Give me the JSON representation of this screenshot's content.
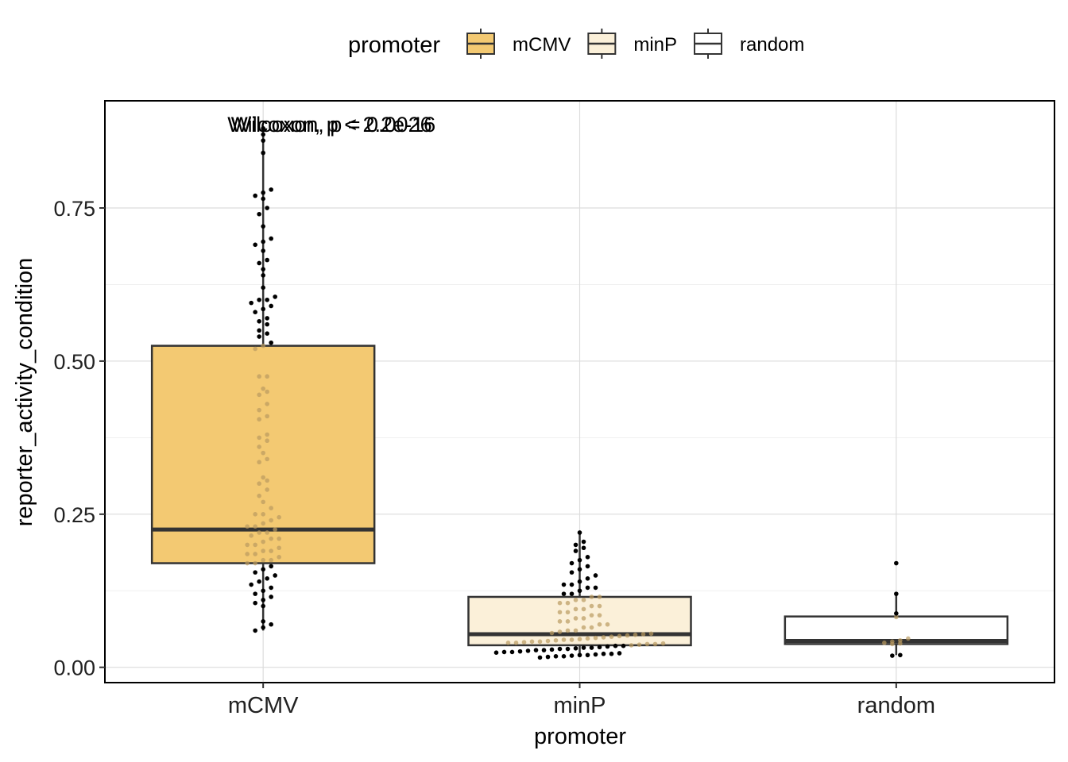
{
  "chart_data": {
    "type": "box",
    "xlabel": "promoter",
    "ylabel": "reporter_activity_condition",
    "ylim": [
      -0.025,
      0.925
    ],
    "yticks": [
      0.0,
      0.25,
      0.5,
      0.75
    ],
    "ytick_labels": [
      "0.00",
      "0.25",
      "0.50",
      "0.75"
    ],
    "categories": [
      "mCMV",
      "minP",
      "random"
    ],
    "grid": true,
    "legend": {
      "title": "promoter",
      "position": "top",
      "entries": [
        {
          "label": "mCMV",
          "color": "#f3c972"
        },
        {
          "label": "minP",
          "color": "#fbf0d9"
        },
        {
          "label": "random",
          "color": "#ffffff"
        }
      ]
    },
    "annotations": [
      {
        "text": "Wilcoxon, p < 2.2e-16",
        "x": "mCMV",
        "y": 0.89
      },
      {
        "text": "Wilcoxon, p = 0.0026",
        "x": "mCMV",
        "y": 0.89
      }
    ],
    "boxes": [
      {
        "name": "mCMV",
        "q1": 0.17,
        "median": 0.225,
        "q3": 0.525,
        "whisker_low": 0.06,
        "whisker_high": 0.88
      },
      {
        "name": "minP",
        "q1": 0.036,
        "median": 0.054,
        "q3": 0.115,
        "whisker_low": 0.017,
        "whisker_high": 0.22
      },
      {
        "name": "random",
        "q1": 0.038,
        "median": 0.043,
        "q3": 0.083,
        "whisker_low": 0.02,
        "whisker_high": 0.12
      }
    ],
    "points": {
      "mCMV": [
        0.88,
        0.87,
        0.86,
        0.84,
        0.78,
        0.77,
        0.775,
        0.765,
        0.74,
        0.75,
        0.72,
        0.7,
        0.695,
        0.69,
        0.68,
        0.665,
        0.66,
        0.65,
        0.64,
        0.62,
        0.605,
        0.6,
        0.6,
        0.595,
        0.59,
        0.585,
        0.58,
        0.57,
        0.565,
        0.56,
        0.55,
        0.545,
        0.54,
        0.53,
        0.525,
        0.52,
        0.475,
        0.475,
        0.455,
        0.45,
        0.445,
        0.43,
        0.42,
        0.41,
        0.405,
        0.38,
        0.375,
        0.37,
        0.36,
        0.35,
        0.34,
        0.335,
        0.31,
        0.305,
        0.3,
        0.29,
        0.28,
        0.27,
        0.26,
        0.25,
        0.25,
        0.245,
        0.24,
        0.235,
        0.23,
        0.23,
        0.225,
        0.22,
        0.22,
        0.215,
        0.21,
        0.21,
        0.205,
        0.2,
        0.2,
        0.195,
        0.19,
        0.19,
        0.185,
        0.185,
        0.18,
        0.175,
        0.175,
        0.17,
        0.17,
        0.165,
        0.16,
        0.155,
        0.15,
        0.145,
        0.14,
        0.135,
        0.13,
        0.125,
        0.12,
        0.115,
        0.11,
        0.105,
        0.1,
        0.075,
        0.07,
        0.065,
        0.06
      ],
      "minP": [
        0.22,
        0.205,
        0.2,
        0.195,
        0.19,
        0.18,
        0.175,
        0.17,
        0.165,
        0.16,
        0.155,
        0.15,
        0.145,
        0.14,
        0.135,
        0.135,
        0.13,
        0.13,
        0.125,
        0.12,
        0.12,
        0.115,
        0.115,
        0.11,
        0.11,
        0.105,
        0.105,
        0.1,
        0.1,
        0.095,
        0.095,
        0.09,
        0.09,
        0.085,
        0.085,
        0.08,
        0.08,
        0.075,
        0.075,
        0.07,
        0.07,
        0.065,
        0.065,
        0.06,
        0.06,
        0.058,
        0.056,
        0.055,
        0.054,
        0.053,
        0.052,
        0.051,
        0.05,
        0.049,
        0.048,
        0.047,
        0.046,
        0.045,
        0.045,
        0.044,
        0.043,
        0.042,
        0.042,
        0.041,
        0.04,
        0.04,
        0.039,
        0.038,
        0.038,
        0.037,
        0.036,
        0.035,
        0.035,
        0.034,
        0.033,
        0.032,
        0.032,
        0.031,
        0.03,
        0.03,
        0.029,
        0.028,
        0.028,
        0.027,
        0.026,
        0.025,
        0.025,
        0.024,
        0.023,
        0.022,
        0.022,
        0.021,
        0.02,
        0.02,
        0.019,
        0.018,
        0.018,
        0.017,
        0.016
      ],
      "random": [
        0.17,
        0.12,
        0.088,
        0.082,
        0.047,
        0.044,
        0.042,
        0.04,
        0.039,
        0.038,
        0.02,
        0.019
      ]
    }
  }
}
